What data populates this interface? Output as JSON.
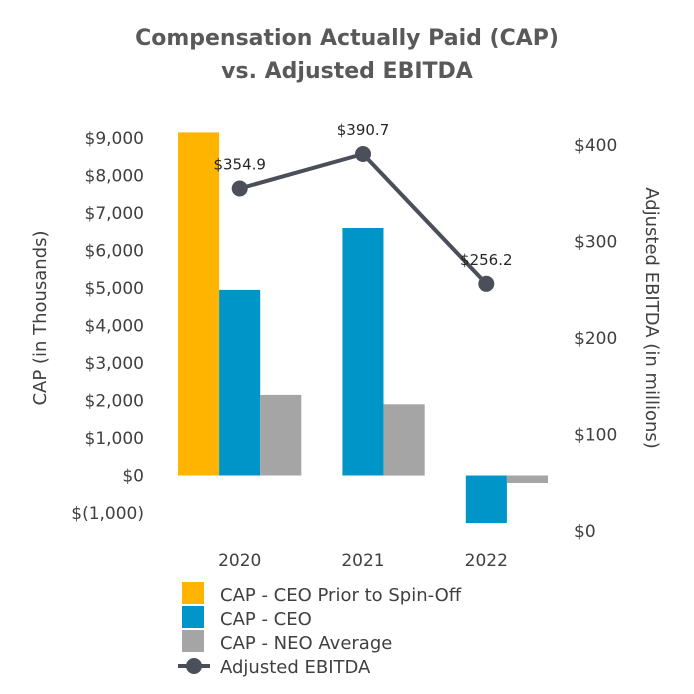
{
  "chart_data": {
    "type": "bar",
    "title": [
      "Compensation Actually Paid (CAP)",
      "vs. Adjusted EBITDA"
    ],
    "categories": [
      "2020",
      "2021",
      "2022"
    ],
    "ylabel": "CAP (in Thousands)",
    "y2label": "Adjusted EBITDA (in millions)",
    "ylim": [
      -1000,
      9000
    ],
    "y_ticks": [
      -1000,
      0,
      1000,
      2000,
      3000,
      4000,
      5000,
      6000,
      7000,
      8000,
      9000
    ],
    "y_tick_labels": [
      "$(1,000)",
      "$0",
      "$1,000",
      "$2,000",
      "$3,000",
      "$4,000",
      "$5,000",
      "$6,000",
      "$7,000",
      "$8,000",
      "$9,000"
    ],
    "y2lim": [
      0,
      400
    ],
    "y2_ticks": [
      0,
      100,
      200,
      300,
      400
    ],
    "y2_tick_labels": [
      "$0",
      "$100",
      "$200",
      "$300",
      "$400"
    ],
    "grid": false,
    "legend_position": "bottom",
    "series": [
      {
        "name": "CAP - CEO Prior to Spin-Off",
        "type": "bar",
        "axis": "left",
        "color": "#FFB400",
        "values": [
          9150,
          null,
          null
        ]
      },
      {
        "name": "CAP - CEO",
        "type": "bar",
        "axis": "left",
        "color": "#0095C8",
        "values": [
          4950,
          6600,
          -1270
        ]
      },
      {
        "name": "CAP - NEO Average",
        "type": "bar",
        "axis": "left",
        "color": "#A5A5A5",
        "values": [
          2150,
          1900,
          -200
        ]
      },
      {
        "name": "Adjusted EBITDA",
        "type": "line",
        "axis": "right",
        "color": "#4A4F59",
        "values": [
          354.9,
          390.7,
          256.2
        ],
        "labels": [
          "$354.9",
          "$390.7",
          "$256.2"
        ]
      }
    ]
  }
}
